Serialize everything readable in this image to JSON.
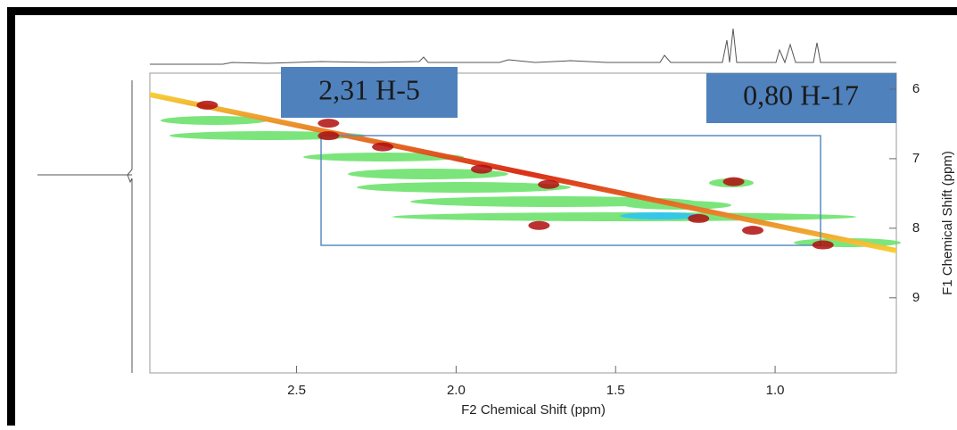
{
  "chart_data": {
    "type": "contour",
    "xlabel": "F2 Chemical Shift (ppm)",
    "ylabel": "F1 Chemical Shift (ppm)",
    "xlim": [
      2.96,
      0.62
    ],
    "ylim": [
      5.77,
      10.08
    ],
    "xticks": [
      2.5,
      {
        "value": 2,
        "label": "2.0"
      },
      1.5,
      {
        "value": 1,
        "label": "1.0"
      }
    ],
    "yticks": [
      6,
      7,
      8,
      9
    ],
    "annotations": [
      "2,31 H-5",
      "0,80 H-17"
    ],
    "peaks": {
      "x": [
        2.78,
        2.4,
        2.23,
        1.92,
        1.71,
        1.24,
        1.07,
        0.85,
        1.74,
        1.13,
        2.4
      ],
      "y": [
        6.23,
        6.67,
        6.83,
        7.15,
        7.37,
        7.86,
        8.03,
        8.24,
        7.96,
        7.33,
        6.49
      ]
    },
    "color": "#b00d0d"
  }
}
